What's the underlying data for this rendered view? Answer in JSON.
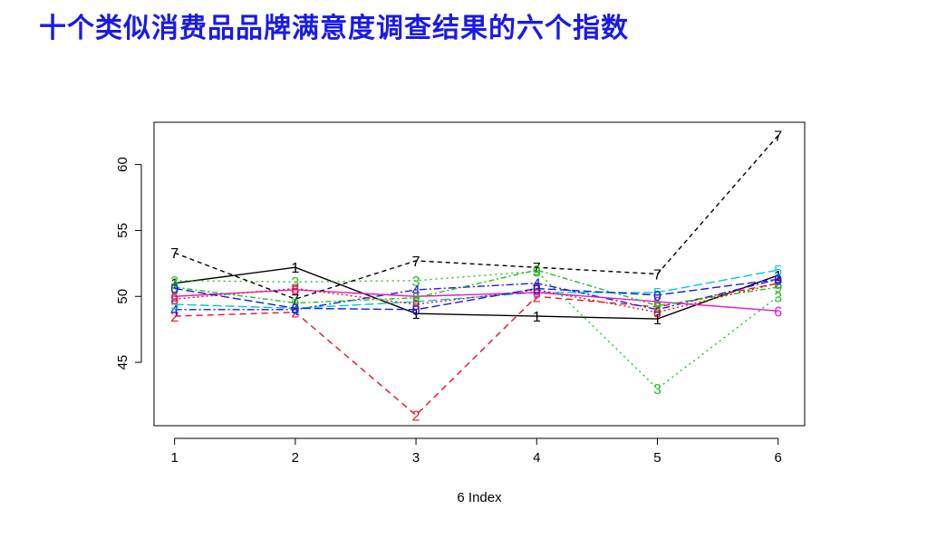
{
  "title": "十个类似消费品品牌满意度调查结果的六个指数",
  "chart_data": {
    "type": "line",
    "title": "十个类似消费品品牌满意度调查结果的六个指数",
    "xlabel": "6 Index",
    "ylabel": "",
    "x": [
      1,
      2,
      3,
      4,
      5,
      6
    ],
    "xlim": [
      0.83,
      6.22
    ],
    "ylim": [
      40.2,
      63.2
    ],
    "xticks": [
      1,
      2,
      3,
      4,
      5,
      6
    ],
    "yticks": [
      45,
      50,
      55,
      60
    ],
    "grid": false,
    "legend": "none",
    "series": [
      {
        "marker": "1",
        "color": "#000000",
        "dash": "",
        "values": [
          51.0,
          52.2,
          48.7,
          48.5,
          48.3,
          51.6
        ]
      },
      {
        "marker": "2",
        "color": "#e8141e",
        "dash": "7,5",
        "values": [
          48.5,
          48.8,
          41.0,
          50.0,
          49.2,
          51.0
        ]
      },
      {
        "marker": "3",
        "color": "#1fc01f",
        "dash": "2,4",
        "values": [
          51.2,
          51.1,
          51.2,
          51.9,
          43.0,
          50.0
        ]
      },
      {
        "marker": "4",
        "color": "#1a1ae6",
        "dash": "8,3,2,3",
        "values": [
          49.0,
          49.0,
          50.5,
          51.0,
          49.0,
          51.3
        ]
      },
      {
        "marker": "5",
        "color": "#00c8d2",
        "dash": "10,4",
        "values": [
          49.4,
          49.1,
          49.6,
          50.3,
          50.3,
          52.0
        ]
      },
      {
        "marker": "6",
        "color": "#e619c8",
        "dash": "",
        "values": [
          50.0,
          50.5,
          50.0,
          50.3,
          49.6,
          48.9
        ]
      },
      {
        "marker": "7",
        "color": "#000000",
        "dash": "5,4",
        "values": [
          53.3,
          49.8,
          52.7,
          52.2,
          51.7,
          62.2
        ]
      },
      {
        "marker": "8",
        "color": "#e8141e",
        "dash": "2,3",
        "values": [
          49.8,
          50.6,
          49.4,
          50.5,
          48.8,
          51.0
        ]
      },
      {
        "marker": "9",
        "color": "#1fc01f",
        "dash": "6,3,2,3",
        "values": [
          50.7,
          49.5,
          49.9,
          52.0,
          49.3,
          50.7
        ]
      },
      {
        "marker": "0",
        "color": "#1a1ae6",
        "dash": "9,4",
        "values": [
          50.6,
          49.1,
          49.0,
          50.6,
          50.1,
          51.3
        ]
      }
    ]
  }
}
